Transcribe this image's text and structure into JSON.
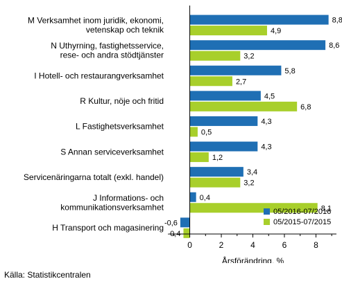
{
  "chart_data": {
    "type": "bar",
    "orientation": "horizontal",
    "categories": [
      [
        "M Verksamhet inom juridik, ekonomi,",
        "vetenskap och teknik"
      ],
      [
        "N Uthyrning, fastighetsservice,",
        "rese- och andra stödtjänster"
      ],
      [
        "I Hotell- och restaurangverksamhet"
      ],
      [
        "R Kultur, nöje och fritid"
      ],
      [
        "L Fastighetsverksamhet"
      ],
      [
        "S Annan serviceverksamhet"
      ],
      [
        "Servicenäringarna totalt (exkl. handel)"
      ],
      [
        "J Informations- och",
        "kommunikationsverksamhet"
      ],
      [
        "H Transport och magasinering"
      ]
    ],
    "series": [
      {
        "name": "05/2016-07/2016",
        "color": "#1f6fb4",
        "values": [
          8.8,
          8.6,
          5.8,
          4.5,
          4.3,
          4.3,
          3.4,
          0.4,
          -0.6
        ],
        "labels": [
          "8,8",
          "8,6",
          "5,8",
          "4,5",
          "4,3",
          "4,3",
          "3,4",
          "0,4",
          "-0,6"
        ]
      },
      {
        "name": "05/2015-07/2015",
        "color": "#a8cf2b",
        "values": [
          4.9,
          3.2,
          2.7,
          6.8,
          0.5,
          1.2,
          3.2,
          8.1,
          -0.4
        ],
        "labels": [
          "4,9",
          "3,2",
          "2,7",
          "6,8",
          "0,5",
          "1,2",
          "3,2",
          "8,1",
          "-0,4"
        ]
      }
    ],
    "xlim": [
      -1.3,
      9.3
    ],
    "xticks": [
      0,
      2,
      4,
      6,
      8
    ],
    "xtick_labels": [
      "0",
      "2",
      "4",
      "6",
      "8"
    ],
    "xlabel": "Årsförändring, %",
    "legend_position": "bottom-right",
    "grid": false
  },
  "source": "Källa: Statistikcentralen"
}
